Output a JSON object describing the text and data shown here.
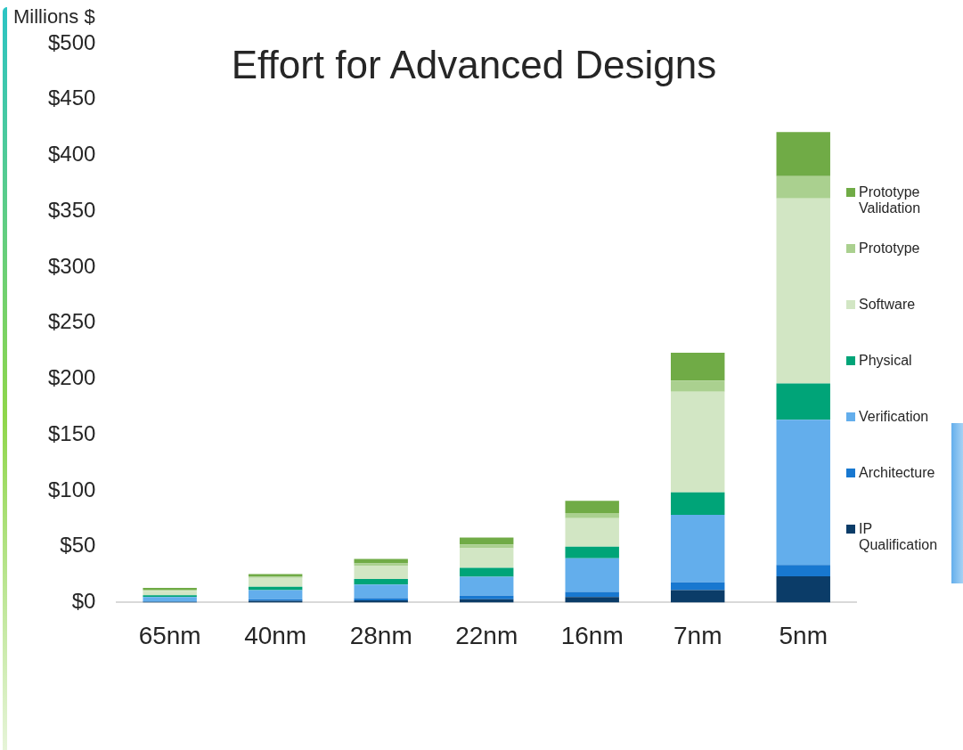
{
  "chart_data": {
    "type": "bar",
    "title": "Effort for Advanced Designs",
    "ylabel": "Millions $",
    "categories": [
      "65nm",
      "40nm",
      "28nm",
      "22nm",
      "16nm",
      "7nm",
      "5nm"
    ],
    "stacked": true,
    "legend": "right",
    "grid": false,
    "ylim": [
      0,
      500
    ],
    "yticks": [
      {
        "value": 0,
        "label": "$0"
      },
      {
        "value": 50,
        "label": "$50"
      },
      {
        "value": 100,
        "label": "$100"
      },
      {
        "value": 150,
        "label": "$150"
      },
      {
        "value": 200,
        "label": "$200"
      },
      {
        "value": 250,
        "label": "$250"
      },
      {
        "value": 300,
        "label": "$300"
      },
      {
        "value": 350,
        "label": "$350"
      },
      {
        "value": 400,
        "label": "$400"
      },
      {
        "value": 450,
        "label": "$450"
      },
      {
        "value": 500,
        "label": "$500"
      }
    ],
    "series": [
      {
        "name": "IP Qualification",
        "color": "#0b3c68",
        "values": [
          0.5,
          1.5,
          2,
          3,
          5,
          11,
          23.5
        ]
      },
      {
        "name": "Architecture",
        "color": "#1878d0",
        "values": [
          0.5,
          1.5,
          2,
          3,
          4.5,
          7,
          10
        ]
      },
      {
        "name": "Verification",
        "color": "#63aeec",
        "values": [
          4,
          8,
          12,
          17,
          30,
          60.5,
          130
        ]
      },
      {
        "name": "Physical",
        "color": "#00a478",
        "values": [
          1.5,
          3,
          5,
          8,
          10.5,
          20,
          32.5
        ]
      },
      {
        "name": "Software",
        "color": "#d2e6c4",
        "values": [
          4,
          8,
          12,
          17.5,
          25.5,
          90,
          165.5
        ]
      },
      {
        "name": "Prototype",
        "color": "#aad08f",
        "values": [
          1,
          1,
          2,
          3.5,
          4.5,
          10,
          20
        ]
      },
      {
        "name": "Prototype Validation",
        "color": "#70ab46",
        "values": [
          1.5,
          2.5,
          4,
          6,
          11,
          25,
          39.5
        ]
      }
    ]
  }
}
